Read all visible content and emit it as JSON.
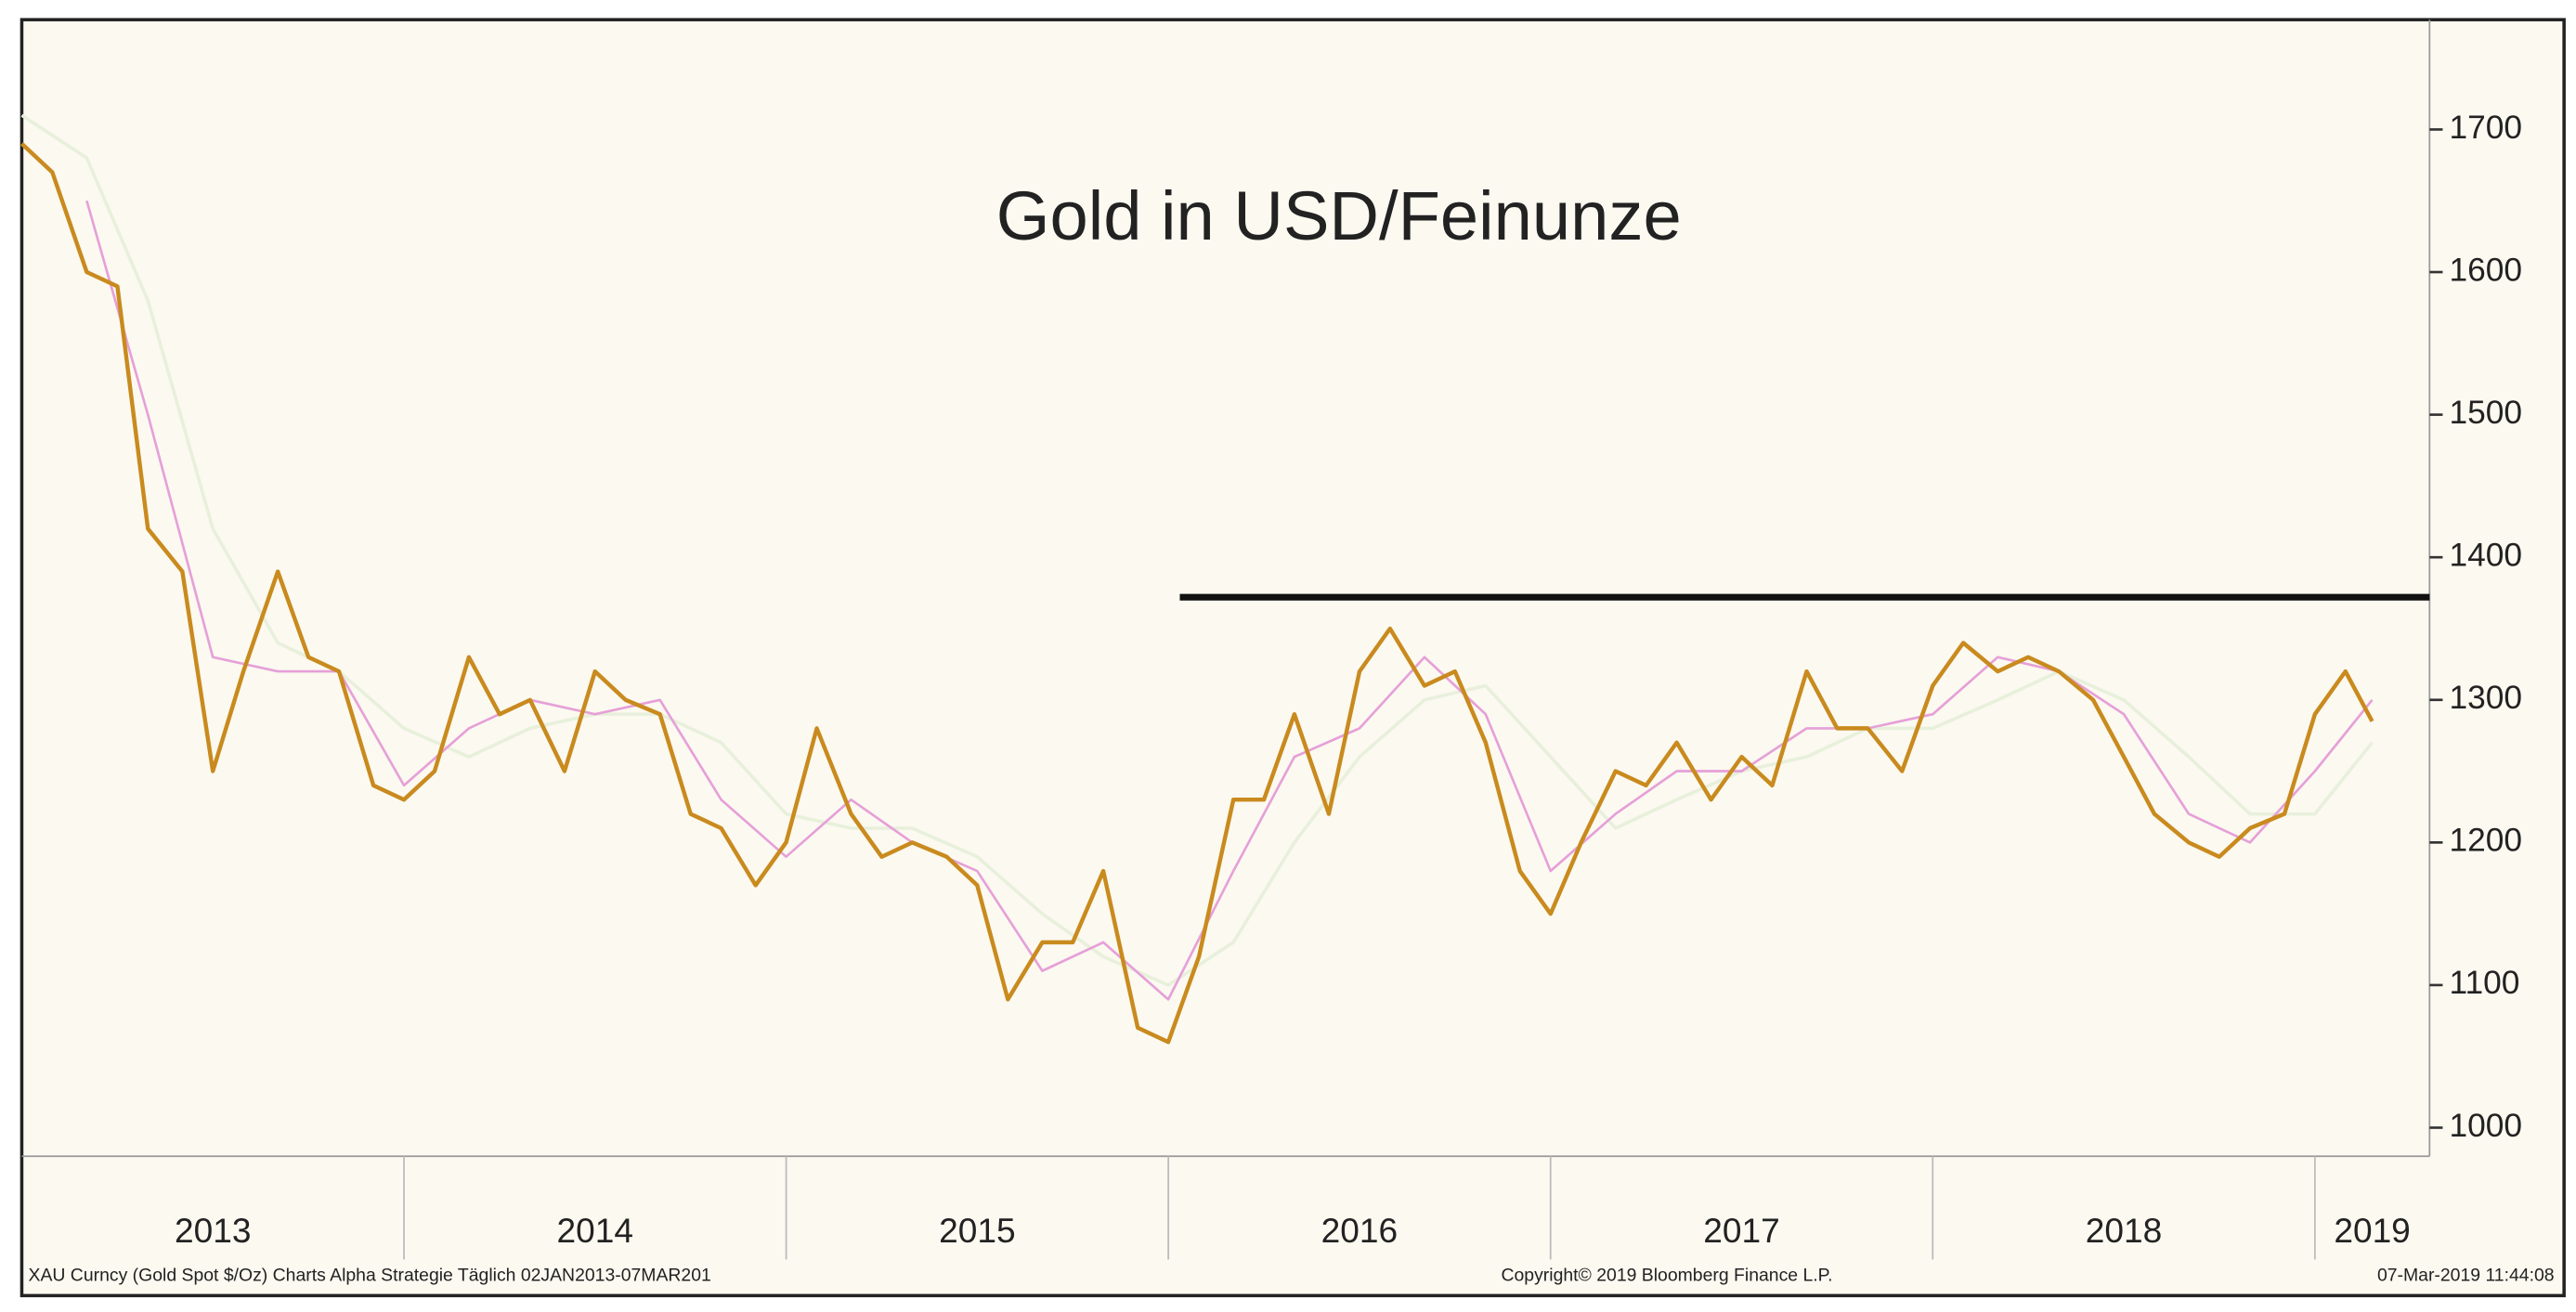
{
  "chart_data": {
    "type": "line",
    "title": "Gold in USD/Feinunze",
    "footer_left": "XAU Curncy (Gold Spot  $/Oz) Charts Alpha Strategie  Täglich 02JAN2013-07MAR201",
    "footer_center": "Copyright© 2019 Bloomberg Finance L.P.",
    "footer_right": "07-Mar-2019 11:44:08",
    "xlim": [
      2013,
      2019.3
    ],
    "ylim": [
      980,
      1777
    ],
    "yticks": [
      1000,
      1100,
      1200,
      1300,
      1400,
      1500,
      1600,
      1700
    ],
    "xgrid": [
      2014,
      2015,
      2016,
      2017,
      2018,
      2019
    ],
    "xlabels": [
      {
        "value": 2013.5,
        "label": "2013"
      },
      {
        "value": 2014.5,
        "label": "2014"
      },
      {
        "value": 2015.5,
        "label": "2015"
      },
      {
        "value": 2016.5,
        "label": "2016"
      },
      {
        "value": 2017.5,
        "label": "2017"
      },
      {
        "value": 2018.5,
        "label": "2018"
      },
      {
        "value": 2019.15,
        "label": "2019"
      }
    ],
    "hline": {
      "value": 1372,
      "x": [
        2016.03,
        2019.3
      ],
      "color": "#111111"
    },
    "series": [
      {
        "color": "#e8f0dc",
        "width": 2,
        "x": [
          2013.0,
          2013.17,
          2013.33,
          2013.5,
          2013.67,
          2013.83,
          2014.0,
          2014.17,
          2014.33,
          2014.5,
          2014.67,
          2014.83,
          2015.0,
          2015.17,
          2015.33,
          2015.5,
          2015.67,
          2015.83,
          2016.0,
          2016.17,
          2016.33,
          2016.5,
          2016.67,
          2016.83,
          2017.0,
          2017.17,
          2017.33,
          2017.5,
          2017.67,
          2017.83,
          2018.0,
          2018.17,
          2018.33,
          2018.5,
          2018.67,
          2018.83,
          2019.0,
          2019.15
        ],
        "values": [
          1710,
          1680,
          1580,
          1420,
          1340,
          1320,
          1280,
          1260,
          1280,
          1290,
          1290,
          1270,
          1220,
          1210,
          1210,
          1190,
          1150,
          1120,
          1100,
          1130,
          1200,
          1260,
          1300,
          1310,
          1260,
          1210,
          1230,
          1250,
          1260,
          1280,
          1280,
          1300,
          1320,
          1300,
          1260,
          1220,
          1220,
          1270
        ]
      },
      {
        "color": "#e6a0d8",
        "width": 1.5,
        "x": [
          2013.17,
          2013.33,
          2013.5,
          2013.67,
          2013.83,
          2014.0,
          2014.17,
          2014.33,
          2014.5,
          2014.67,
          2014.83,
          2015.0,
          2015.17,
          2015.33,
          2015.5,
          2015.67,
          2015.83,
          2016.0,
          2016.17,
          2016.33,
          2016.5,
          2016.67,
          2016.83,
          2017.0,
          2017.17,
          2017.33,
          2017.5,
          2017.67,
          2017.83,
          2018.0,
          2018.17,
          2018.33,
          2018.5,
          2018.67,
          2018.83,
          2019.0,
          2019.15
        ],
        "values": [
          1650,
          1500,
          1330,
          1320,
          1320,
          1240,
          1280,
          1300,
          1290,
          1300,
          1230,
          1190,
          1230,
          1200,
          1180,
          1110,
          1130,
          1090,
          1180,
          1260,
          1280,
          1330,
          1290,
          1180,
          1220,
          1250,
          1250,
          1280,
          1280,
          1290,
          1330,
          1320,
          1290,
          1220,
          1200,
          1250,
          1300
        ]
      },
      {
        "color": "#c98a1e",
        "width": 2.5,
        "x": [
          2013.0,
          2013.08,
          2013.17,
          2013.25,
          2013.33,
          2013.42,
          2013.5,
          2013.58,
          2013.67,
          2013.75,
          2013.83,
          2013.92,
          2014.0,
          2014.08,
          2014.17,
          2014.25,
          2014.33,
          2014.42,
          2014.5,
          2014.58,
          2014.67,
          2014.75,
          2014.83,
          2014.92,
          2015.0,
          2015.08,
          2015.17,
          2015.25,
          2015.33,
          2015.42,
          2015.5,
          2015.58,
          2015.67,
          2015.75,
          2015.83,
          2015.92,
          2016.0,
          2016.08,
          2016.17,
          2016.25,
          2016.33,
          2016.42,
          2016.5,
          2016.58,
          2016.67,
          2016.75,
          2016.83,
          2016.92,
          2017.0,
          2017.08,
          2017.17,
          2017.25,
          2017.33,
          2017.42,
          2017.5,
          2017.58,
          2017.67,
          2017.75,
          2017.83,
          2017.92,
          2018.0,
          2018.08,
          2018.17,
          2018.25,
          2018.33,
          2018.42,
          2018.5,
          2018.58,
          2018.67,
          2018.75,
          2018.83,
          2018.92,
          2019.0,
          2019.08,
          2019.15
        ],
        "values": [
          1690,
          1670,
          1600,
          1590,
          1420,
          1390,
          1250,
          1320,
          1390,
          1330,
          1320,
          1240,
          1230,
          1250,
          1330,
          1290,
          1300,
          1250,
          1320,
          1300,
          1290,
          1220,
          1210,
          1170,
          1200,
          1280,
          1220,
          1190,
          1200,
          1190,
          1170,
          1090,
          1130,
          1130,
          1180,
          1070,
          1060,
          1120,
          1230,
          1230,
          1290,
          1220,
          1320,
          1350,
          1310,
          1320,
          1270,
          1180,
          1150,
          1200,
          1250,
          1240,
          1270,
          1230,
          1260,
          1240,
          1320,
          1280,
          1280,
          1250,
          1310,
          1340,
          1320,
          1330,
          1320,
          1300,
          1260,
          1220,
          1200,
          1190,
          1210,
          1220,
          1290,
          1320,
          1285
        ]
      }
    ]
  }
}
